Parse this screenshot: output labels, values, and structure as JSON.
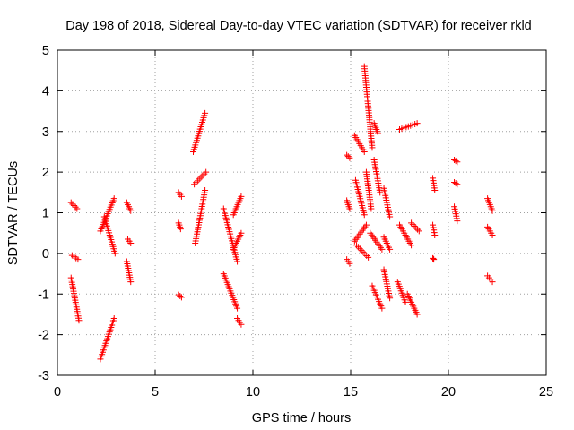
{
  "chart_data": {
    "type": "scatter",
    "title": "Day 198 of 2018, Sidereal Day-to-day VTEC variation (SDTVAR) for receiver rkld",
    "xlabel": "GPS time / hours",
    "ylabel": "SDTVAR / TECUs",
    "xlim": [
      0,
      25
    ],
    "ylim": [
      -3,
      5
    ],
    "xticks": [
      0,
      5,
      10,
      15,
      20,
      25
    ],
    "yticks": [
      -3,
      -2,
      -1,
      0,
      1,
      2,
      3,
      4,
      5
    ],
    "xtick_labels": [
      "0",
      "5",
      "10",
      "15",
      "20",
      "25"
    ],
    "ytick_labels": [
      "-3",
      "-2",
      "-1",
      "0",
      "1",
      "2",
      "3",
      "4",
      "5"
    ],
    "grid": true,
    "marker": "+",
    "color": "#ff0000",
    "series": [
      {
        "name": "SDTVAR",
        "segments": [
          {
            "x": [
              0.7,
              1.0
            ],
            "y": [
              1.25,
              1.1
            ]
          },
          {
            "x": [
              0.75,
              1.05
            ],
            "y": [
              -0.05,
              -0.15
            ]
          },
          {
            "x": [
              0.7,
              1.1
            ],
            "y": [
              -0.6,
              -1.65
            ]
          },
          {
            "x": [
              2.2,
              2.9
            ],
            "y": [
              -2.6,
              -1.6
            ]
          },
          {
            "x": [
              2.2,
              2.9
            ],
            "y": [
              0.55,
              1.35
            ]
          },
          {
            "x": [
              2.4,
              2.95
            ],
            "y": [
              0.9,
              0.0
            ]
          },
          {
            "x": [
              3.55,
              3.75
            ],
            "y": [
              1.25,
              1.05
            ]
          },
          {
            "x": [
              3.6,
              3.75
            ],
            "y": [
              0.35,
              0.25
            ]
          },
          {
            "x": [
              3.55,
              3.75
            ],
            "y": [
              -0.2,
              -0.7
            ]
          },
          {
            "x": [
              6.2,
              6.35
            ],
            "y": [
              1.5,
              1.4
            ]
          },
          {
            "x": [
              6.2,
              6.3
            ],
            "y": [
              0.75,
              0.6
            ]
          },
          {
            "x": [
              6.2,
              6.35
            ],
            "y": [
              -1.02,
              -1.08
            ]
          },
          {
            "x": [
              6.95,
              7.55
            ],
            "y": [
              2.5,
              3.45
            ]
          },
          {
            "x": [
              7.0,
              7.6
            ],
            "y": [
              1.7,
              2.0
            ]
          },
          {
            "x": [
              7.05,
              7.55
            ],
            "y": [
              0.25,
              1.55
            ]
          },
          {
            "x": [
              8.5,
              9.2
            ],
            "y": [
              1.1,
              -0.2
            ]
          },
          {
            "x": [
              8.5,
              9.2
            ],
            "y": [
              -0.5,
              -1.35
            ]
          },
          {
            "x": [
              9.0,
              9.4
            ],
            "y": [
              0.95,
              1.4
            ]
          },
          {
            "x": [
              9.0,
              9.4
            ],
            "y": [
              0.1,
              0.5
            ]
          },
          {
            "x": [
              9.2,
              9.4
            ],
            "y": [
              -1.6,
              -1.75
            ]
          },
          {
            "x": [
              14.8,
              14.95
            ],
            "y": [
              2.42,
              2.35
            ]
          },
          {
            "x": [
              14.8,
              14.95
            ],
            "y": [
              1.3,
              1.1
            ]
          },
          {
            "x": [
              14.8,
              14.95
            ],
            "y": [
              -0.15,
              -0.25
            ]
          },
          {
            "x": [
              15.2,
              15.7
            ],
            "y": [
              2.9,
              2.5
            ]
          },
          {
            "x": [
              15.25,
              15.7
            ],
            "y": [
              1.8,
              0.95
            ]
          },
          {
            "x": [
              15.2,
              15.8
            ],
            "y": [
              0.3,
              0.7
            ]
          },
          {
            "x": [
              15.3,
              15.9
            ],
            "y": [
              0.2,
              -0.1
            ]
          },
          {
            "x": [
              15.7,
              16.1
            ],
            "y": [
              4.6,
              2.6
            ]
          },
          {
            "x": [
              15.8,
              16.05
            ],
            "y": [
              2.0,
              1.1
            ]
          },
          {
            "x": [
              16.2,
              16.4
            ],
            "y": [
              3.2,
              2.95
            ]
          },
          {
            "x": [
              16.2,
              16.5
            ],
            "y": [
              2.3,
              1.5
            ]
          },
          {
            "x": [
              16.0,
              16.6
            ],
            "y": [
              0.5,
              0.1
            ]
          },
          {
            "x": [
              16.1,
              16.6
            ],
            "y": [
              -0.8,
              -1.35
            ]
          },
          {
            "x": [
              16.7,
              17.0
            ],
            "y": [
              1.6,
              0.9
            ]
          },
          {
            "x": [
              16.7,
              17.0
            ],
            "y": [
              0.4,
              0.1
            ]
          },
          {
            "x": [
              16.7,
              17.0
            ],
            "y": [
              -0.4,
              -1.1
            ]
          },
          {
            "x": [
              17.4,
              17.8
            ],
            "y": [
              -0.7,
              -1.2
            ]
          },
          {
            "x": [
              17.5,
              18.1
            ],
            "y": [
              0.7,
              0.2
            ]
          },
          {
            "x": [
              17.9,
              18.4
            ],
            "y": [
              -1.0,
              -1.5
            ]
          },
          {
            "x": [
              17.5,
              18.4
            ],
            "y": [
              3.05,
              3.2
            ]
          },
          {
            "x": [
              18.1,
              18.5
            ],
            "y": [
              0.75,
              0.55
            ]
          },
          {
            "x": [
              19.2,
              19.3
            ],
            "y": [
              1.85,
              1.55
            ]
          },
          {
            "x": [
              19.2,
              19.3
            ],
            "y": [
              0.7,
              0.45
            ]
          },
          {
            "x": [
              19.2,
              19.25
            ],
            "y": [
              -0.12,
              -0.15
            ]
          },
          {
            "x": [
              20.3,
              20.45
            ],
            "y": [
              2.3,
              2.25
            ]
          },
          {
            "x": [
              20.3,
              20.45
            ],
            "y": [
              1.75,
              1.7
            ]
          },
          {
            "x": [
              20.3,
              20.45
            ],
            "y": [
              1.15,
              0.8
            ]
          },
          {
            "x": [
              22.0,
              22.25
            ],
            "y": [
              1.35,
              1.05
            ]
          },
          {
            "x": [
              22.0,
              22.25
            ],
            "y": [
              0.65,
              0.45
            ]
          },
          {
            "x": [
              22.0,
              22.25
            ],
            "y": [
              -0.55,
              -0.7
            ]
          }
        ]
      }
    ]
  }
}
